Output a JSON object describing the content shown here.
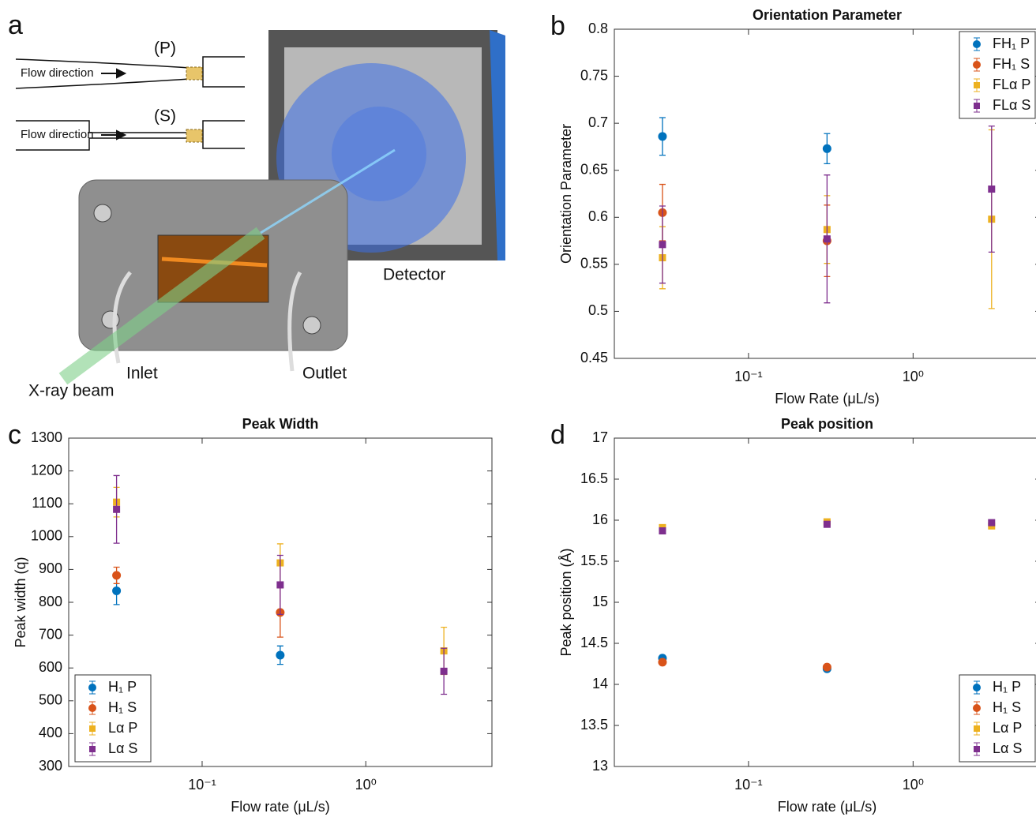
{
  "panel_a": {
    "label": "a",
    "nozzle_p": "(P)",
    "flow_p": "Flow direction",
    "nozzle_s": "(S)",
    "flow_s": "Flow direction",
    "detector": "Detector",
    "inlet": "Inlet",
    "outlet": "Outlet",
    "beam": "X-ray beam"
  },
  "chart_data": [
    {
      "type": "scatter",
      "panel_label": "b",
      "title": "Orientation Parameter",
      "xlabel": "Flow Rate (μL/s)",
      "ylabel": "Orientation Parameter",
      "xscale": "log",
      "x": [
        0.03,
        0.3,
        3
      ],
      "xlim": [
        0.0153,
        5.9
      ],
      "ylim": [
        0.45,
        0.8
      ],
      "xticks": [
        {
          "value": 0.1,
          "label": "10⁻¹"
        },
        {
          "value": 1,
          "label": "10⁰"
        }
      ],
      "yticks": [
        0.45,
        0.5,
        0.55,
        0.6,
        0.65,
        0.7,
        0.75,
        0.8
      ],
      "legend": "upper right",
      "series": [
        {
          "name": "FH₁ P",
          "color": "#0072bd",
          "marker": "circle",
          "values": [
            0.686,
            0.673,
            null
          ],
          "errors": [
            0.02,
            0.016,
            null
          ]
        },
        {
          "name": "FH₁ S",
          "color": "#d95319",
          "marker": "circle",
          "values": [
            0.605,
            0.575,
            null
          ],
          "errors": [
            0.03,
            0.038,
            null
          ]
        },
        {
          "name": "FLα P",
          "color": "#edb120",
          "marker": "square",
          "values": [
            0.557,
            0.587,
            0.598
          ],
          "errors": [
            0.033,
            0.036,
            0.095
          ]
        },
        {
          "name": "FLα S",
          "color": "#7e2f8e",
          "marker": "square",
          "values": [
            0.571,
            0.577,
            0.63
          ],
          "errors": [
            0.041,
            0.068,
            0.067
          ]
        }
      ]
    },
    {
      "type": "scatter",
      "panel_label": "c",
      "title": "Peak Width",
      "xlabel": "Flow rate (μL/s)",
      "ylabel": "Peak width (q)",
      "xscale": "log",
      "x": [
        0.03,
        0.3,
        3
      ],
      "xlim": [
        0.0153,
        5.9
      ],
      "ylim": [
        300,
        1300
      ],
      "xticks": [
        {
          "value": 0.1,
          "label": "10⁻¹"
        },
        {
          "value": 1,
          "label": "10⁰"
        }
      ],
      "yticks": [
        300,
        400,
        500,
        600,
        700,
        800,
        900,
        1000,
        1100,
        1200,
        1300
      ],
      "legend": "lower left",
      "series": [
        {
          "name": "H₁ P",
          "color": "#0072bd",
          "marker": "circle",
          "values": [
            835,
            639,
            null
          ],
          "errors": [
            42,
            28,
            null
          ]
        },
        {
          "name": "H₁ S",
          "color": "#d95319",
          "marker": "circle",
          "values": [
            882,
            769,
            null
          ],
          "errors": [
            25,
            75,
            null
          ]
        },
        {
          "name": "Lα P",
          "color": "#edb120",
          "marker": "square",
          "values": [
            1105,
            920,
            652
          ],
          "errors": [
            45,
            58,
            72
          ]
        },
        {
          "name": "Lα S",
          "color": "#7e2f8e",
          "marker": "square",
          "values": [
            1083,
            853,
            590
          ],
          "errors": [
            103,
            90,
            70
          ]
        }
      ]
    },
    {
      "type": "scatter",
      "panel_label": "d",
      "title": "Peak position",
      "xlabel": "Flow rate (μL/s)",
      "ylabel": "Peak position (Å)",
      "xscale": "log",
      "x": [
        0.03,
        0.3,
        3
      ],
      "xlim": [
        0.0153,
        5.9
      ],
      "ylim": [
        13,
        17
      ],
      "xticks": [
        {
          "value": 0.1,
          "label": "10⁻¹"
        },
        {
          "value": 1,
          "label": "10⁰"
        }
      ],
      "yticks": [
        13,
        13.5,
        14,
        14.5,
        15,
        15.5,
        16,
        16.5,
        17
      ],
      "legend": "lower right",
      "series": [
        {
          "name": "H₁ P",
          "color": "#0072bd",
          "marker": "circle",
          "values": [
            14.32,
            14.19,
            null
          ],
          "errors": [
            0.02,
            0.02,
            null
          ]
        },
        {
          "name": "H₁ S",
          "color": "#d95319",
          "marker": "circle",
          "values": [
            14.27,
            14.21,
            null
          ],
          "errors": [
            0.02,
            0.02,
            null
          ]
        },
        {
          "name": "Lα P",
          "color": "#edb120",
          "marker": "square",
          "values": [
            15.91,
            15.98,
            15.93
          ],
          "errors": [
            0.02,
            0.02,
            0.02
          ]
        },
        {
          "name": "Lα S",
          "color": "#7e2f8e",
          "marker": "square",
          "values": [
            15.87,
            15.95,
            15.97
          ],
          "errors": [
            0.02,
            0.02,
            0.02
          ]
        }
      ]
    }
  ]
}
